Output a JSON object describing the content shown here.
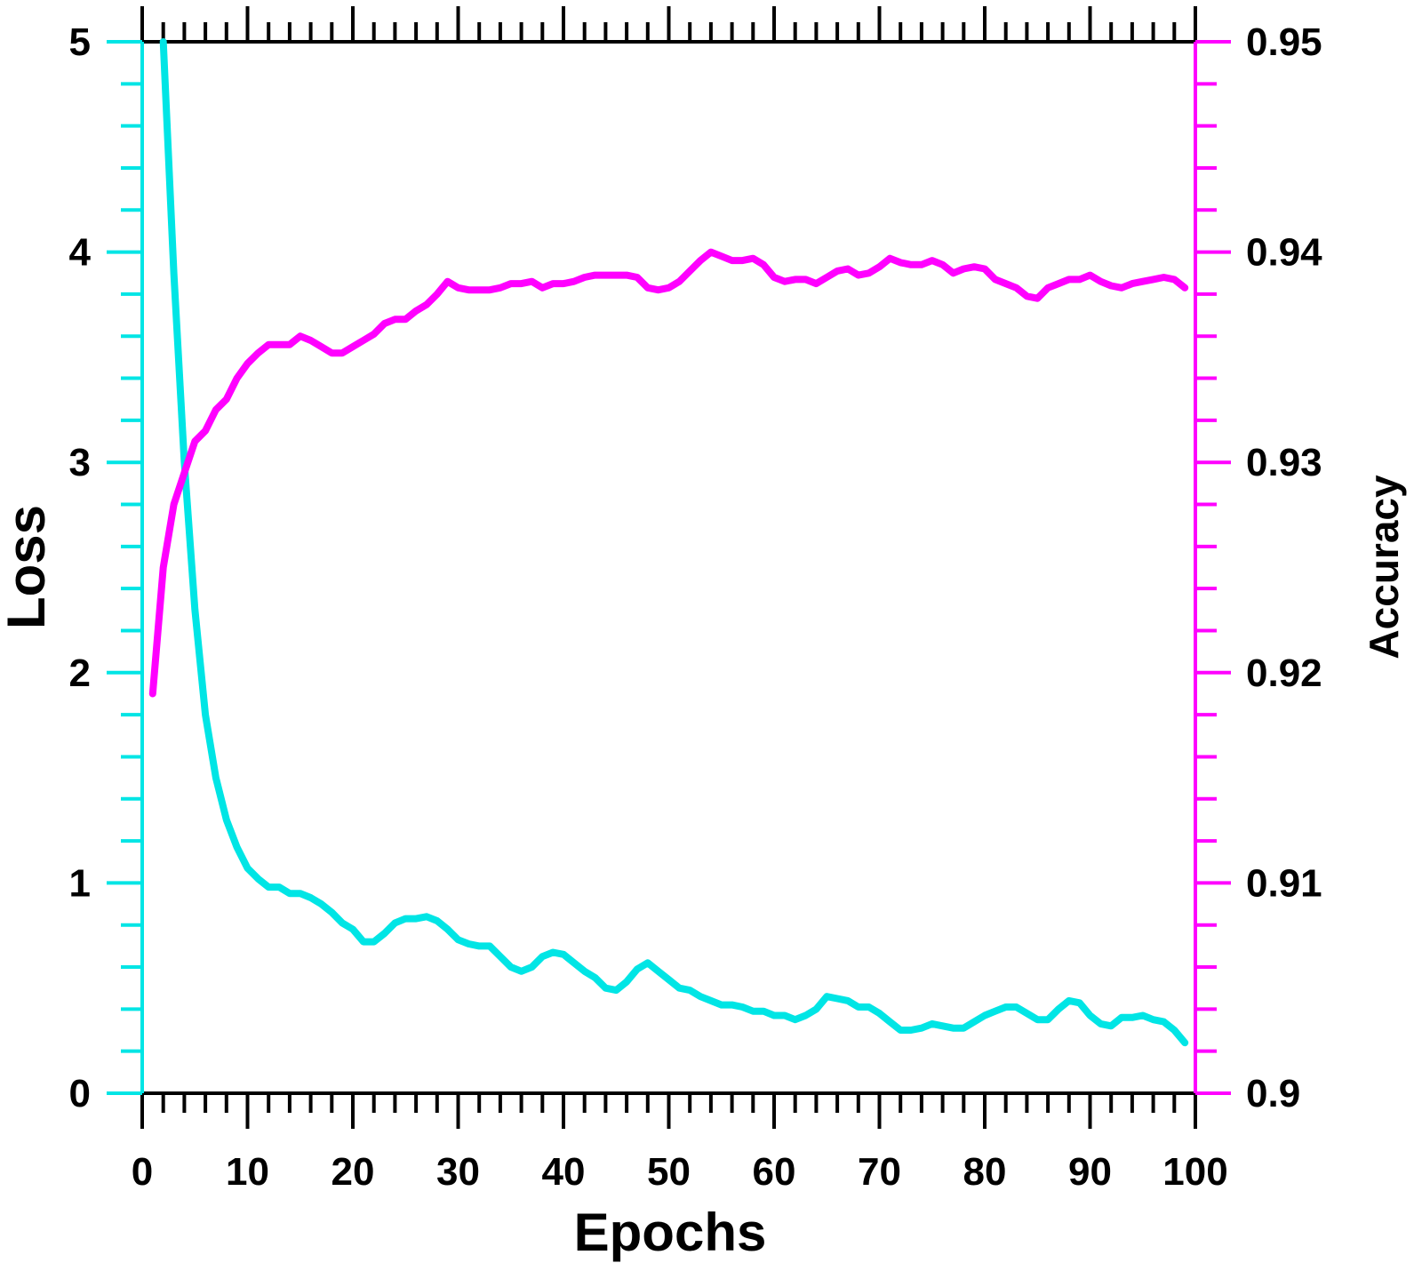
{
  "chart_data": {
    "type": "line",
    "title": "",
    "xlabel": "Epochs",
    "ylabel_left": "Loss",
    "ylabel_right": "Accuracy",
    "xlim": [
      0,
      100
    ],
    "ylim_left": [
      0,
      5
    ],
    "ylim_right": [
      0.9,
      0.95
    ],
    "x_ticks": [
      0,
      10,
      20,
      30,
      40,
      50,
      60,
      70,
      80,
      90,
      100
    ],
    "x_tick_labels": [
      "0",
      "10",
      "20",
      "30",
      "40",
      "50",
      "60",
      "70",
      "80",
      "90",
      "100"
    ],
    "y_left_ticks": [
      0,
      1,
      2,
      3,
      4,
      5
    ],
    "y_left_tick_labels": [
      "0",
      "1",
      "2",
      "3",
      "4",
      "5"
    ],
    "y_right_ticks": [
      0.9,
      0.91,
      0.92,
      0.93,
      0.94,
      0.95
    ],
    "y_right_tick_labels": [
      "0.9",
      "0.91",
      "0.92",
      "0.93",
      "0.94",
      "0.95"
    ],
    "grid": false,
    "legend": "none",
    "colors": {
      "loss": "#00e5e5",
      "accuracy": "#ff00ff",
      "axis": "#000000"
    },
    "series": [
      {
        "axis": "left",
        "color": "#00e5e5",
        "x": [
          2,
          3,
          4,
          5,
          6,
          7,
          8,
          9,
          10,
          11,
          12,
          13,
          14,
          15,
          16,
          17,
          18,
          19,
          20,
          21,
          22,
          23,
          24,
          25,
          26,
          27,
          28,
          29,
          30,
          31,
          32,
          33,
          34,
          35,
          36,
          37,
          38,
          39,
          40,
          41,
          42,
          43,
          44,
          45,
          46,
          47,
          48,
          49,
          50,
          51,
          52,
          53,
          54,
          55,
          56,
          57,
          58,
          59,
          60,
          61,
          62,
          63,
          64,
          65,
          66,
          67,
          68,
          69,
          70,
          71,
          72,
          73,
          74,
          75,
          76,
          77,
          78,
          79,
          80,
          81,
          82,
          83,
          84,
          85,
          86,
          87,
          88,
          89,
          90,
          91,
          92,
          93,
          94,
          95,
          96,
          97,
          98,
          99
        ],
        "values": [
          5.0,
          3.9,
          3.0,
          2.3,
          1.8,
          1.5,
          1.3,
          1.17,
          1.07,
          1.02,
          0.98,
          0.98,
          0.95,
          0.95,
          0.93,
          0.9,
          0.86,
          0.81,
          0.78,
          0.72,
          0.72,
          0.76,
          0.81,
          0.83,
          0.83,
          0.84,
          0.82,
          0.78,
          0.73,
          0.71,
          0.7,
          0.7,
          0.65,
          0.6,
          0.58,
          0.6,
          0.65,
          0.67,
          0.66,
          0.62,
          0.58,
          0.55,
          0.5,
          0.49,
          0.53,
          0.59,
          0.62,
          0.58,
          0.54,
          0.5,
          0.49,
          0.46,
          0.44,
          0.42,
          0.42,
          0.41,
          0.39,
          0.39,
          0.37,
          0.37,
          0.35,
          0.37,
          0.4,
          0.46,
          0.45,
          0.44,
          0.41,
          0.41,
          0.38,
          0.34,
          0.3,
          0.3,
          0.31,
          0.33,
          0.32,
          0.31,
          0.31,
          0.34,
          0.37,
          0.39,
          0.41,
          0.41,
          0.38,
          0.35,
          0.35,
          0.4,
          0.44,
          0.43,
          0.37,
          0.33,
          0.32,
          0.36,
          0.36,
          0.37,
          0.35,
          0.34,
          0.3,
          0.24
        ]
      },
      {
        "axis": "right",
        "color": "#ff00ff",
        "x": [
          1,
          2,
          3,
          4,
          5,
          6,
          7,
          8,
          9,
          10,
          11,
          12,
          13,
          14,
          15,
          16,
          17,
          18,
          19,
          20,
          21,
          22,
          23,
          24,
          25,
          26,
          27,
          28,
          29,
          30,
          31,
          32,
          33,
          34,
          35,
          36,
          37,
          38,
          39,
          40,
          41,
          42,
          43,
          44,
          45,
          46,
          47,
          48,
          49,
          50,
          51,
          52,
          53,
          54,
          55,
          56,
          57,
          58,
          59,
          60,
          61,
          62,
          63,
          64,
          65,
          66,
          67,
          68,
          69,
          70,
          71,
          72,
          73,
          74,
          75,
          76,
          77,
          78,
          79,
          80,
          81,
          82,
          83,
          84,
          85,
          86,
          87,
          88,
          89,
          90,
          91,
          92,
          93,
          94,
          95,
          96,
          97,
          98,
          99
        ],
        "values": [
          0.919,
          0.925,
          0.928,
          0.9295,
          0.931,
          0.9315,
          0.9325,
          0.933,
          0.934,
          0.9347,
          0.9352,
          0.9356,
          0.9356,
          0.9356,
          0.936,
          0.9358,
          0.9355,
          0.9352,
          0.9352,
          0.9355,
          0.9358,
          0.9361,
          0.9366,
          0.9368,
          0.9368,
          0.9372,
          0.9375,
          0.938,
          0.9386,
          0.9383,
          0.9382,
          0.9382,
          0.9382,
          0.9383,
          0.9385,
          0.9385,
          0.9386,
          0.9383,
          0.9385,
          0.9385,
          0.9386,
          0.9388,
          0.9389,
          0.9389,
          0.9389,
          0.9389,
          0.9388,
          0.9383,
          0.9382,
          0.9383,
          0.9386,
          0.9391,
          0.9396,
          0.94,
          0.9398,
          0.9396,
          0.9396,
          0.9397,
          0.9394,
          0.9388,
          0.9386,
          0.9387,
          0.9387,
          0.9385,
          0.9388,
          0.9391,
          0.9392,
          0.9389,
          0.939,
          0.9393,
          0.9397,
          0.9395,
          0.9394,
          0.9394,
          0.9396,
          0.9394,
          0.939,
          0.9392,
          0.9393,
          0.9392,
          0.9387,
          0.9385,
          0.9383,
          0.9379,
          0.9378,
          0.9383,
          0.9385,
          0.9387,
          0.9387,
          0.9389,
          0.9386,
          0.9384,
          0.9383,
          0.9385,
          0.9386,
          0.9387,
          0.9388,
          0.9387,
          0.9383
        ]
      }
    ]
  }
}
